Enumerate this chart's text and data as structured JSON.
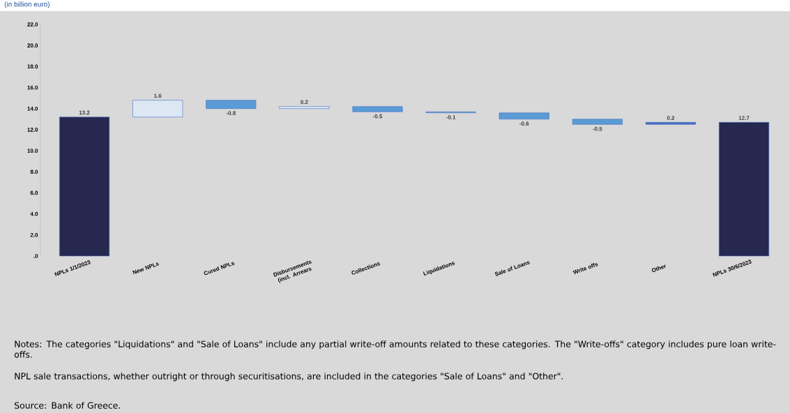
{
  "chart_data": {
    "type": "bar",
    "title": "(in billion euro)",
    "categories": [
      "NPLs 1/1/2023",
      "New NPLs",
      "Cured NPLs",
      "Disbursements (incl. Arrears",
      "Collections",
      "Liquidations",
      "Sale of Loans",
      "Write offs",
      "Other",
      "NPLs 30/6/2023"
    ],
    "values": [
      13.2,
      1.6,
      -0.8,
      0.2,
      -0.5,
      -0.1,
      -0.6,
      -0.5,
      0.2,
      12.7
    ],
    "base": [
      0,
      13.2,
      14.8,
      14.0,
      14.2,
      13.7,
      13.6,
      13.0,
      12.5,
      0
    ],
    "colors": [
      "#262850",
      "#dde8f5",
      "#5b9bd5",
      "#dde8f5",
      "#5b9bd5",
      "#5b9bd5",
      "#5b9bd5",
      "#5b9bd5",
      "#4a6cc0",
      "#262850"
    ],
    "ylim": [
      0,
      22
    ],
    "yticks": [
      {
        "value": 0,
        "label": ".0"
      },
      {
        "value": 2,
        "label": "2.0"
      },
      {
        "value": 4,
        "label": "4.0"
      },
      {
        "value": 6,
        "label": "6.0"
      },
      {
        "value": 8,
        "label": "8.0"
      },
      {
        "value": 10,
        "label": "10.0"
      },
      {
        "value": 12,
        "label": "12.0"
      },
      {
        "value": 14,
        "label": "14.0"
      },
      {
        "value": 16,
        "label": "16.0"
      },
      {
        "value": 18,
        "label": "18.0"
      },
      {
        "value": 20,
        "label": "20.0"
      },
      {
        "value": 22,
        "label": "22.0"
      }
    ],
    "data_labels": true,
    "annotations": [
      "Notes: The categories \"Liquidations\" and \"Sale of Loans\" include any partial write-off amounts related to these categories. The \"Write-offs\" category includes pure loan write-offs.",
      "NPL sale transactions, whether outright or through securitisations, are included in the categories \"Sale of Loans\" and \"Other\".",
      "Source: Bank of Greece."
    ]
  }
}
